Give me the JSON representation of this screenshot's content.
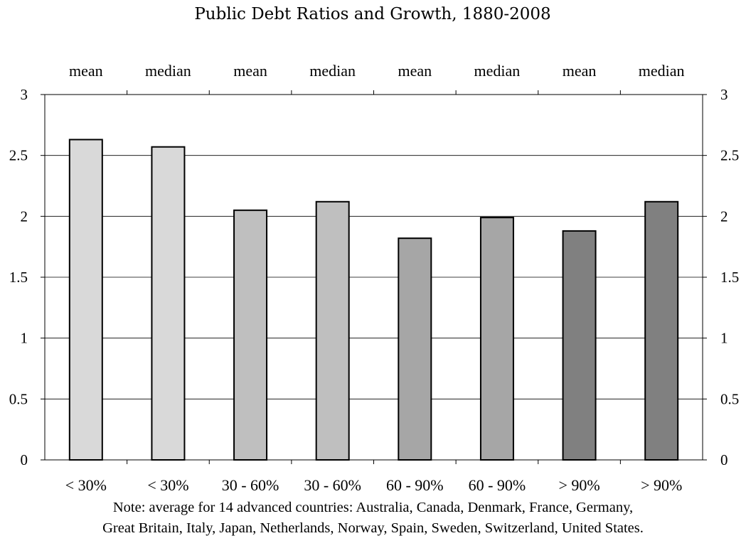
{
  "chart_data": {
    "type": "bar",
    "title": "Public Debt Ratios and Growth, 1880-2008",
    "categories": [
      "< 30%",
      "< 30%",
      "30 - 60%",
      "30 - 60%",
      "60 - 90%",
      "60 - 90%",
      "> 90%",
      "> 90%"
    ],
    "stats": [
      "mean",
      "median",
      "mean",
      "median",
      "mean",
      "median",
      "mean",
      "median"
    ],
    "values": [
      2.63,
      2.57,
      2.05,
      2.12,
      1.82,
      1.99,
      1.88,
      2.12
    ],
    "bar_colors": [
      "#d9d9d9",
      "#d9d9d9",
      "#bfbfbf",
      "#bfbfbf",
      "#a6a6a6",
      "#a6a6a6",
      "#808080",
      "#808080"
    ],
    "ylim": [
      0,
      3
    ],
    "yticks": [
      "0",
      "0.5",
      "1",
      "1.5",
      "2",
      "2.5",
      "3"
    ],
    "grid": true,
    "xlabel": "",
    "ylabel": ""
  },
  "note": {
    "line1": "Note: average for 14 advanced countries: Australia, Canada, Denmark, France, Germany,",
    "line2": "Great Britain, Italy, Japan, Netherlands, Norway, Spain, Sweden, Switzerland, United States."
  }
}
